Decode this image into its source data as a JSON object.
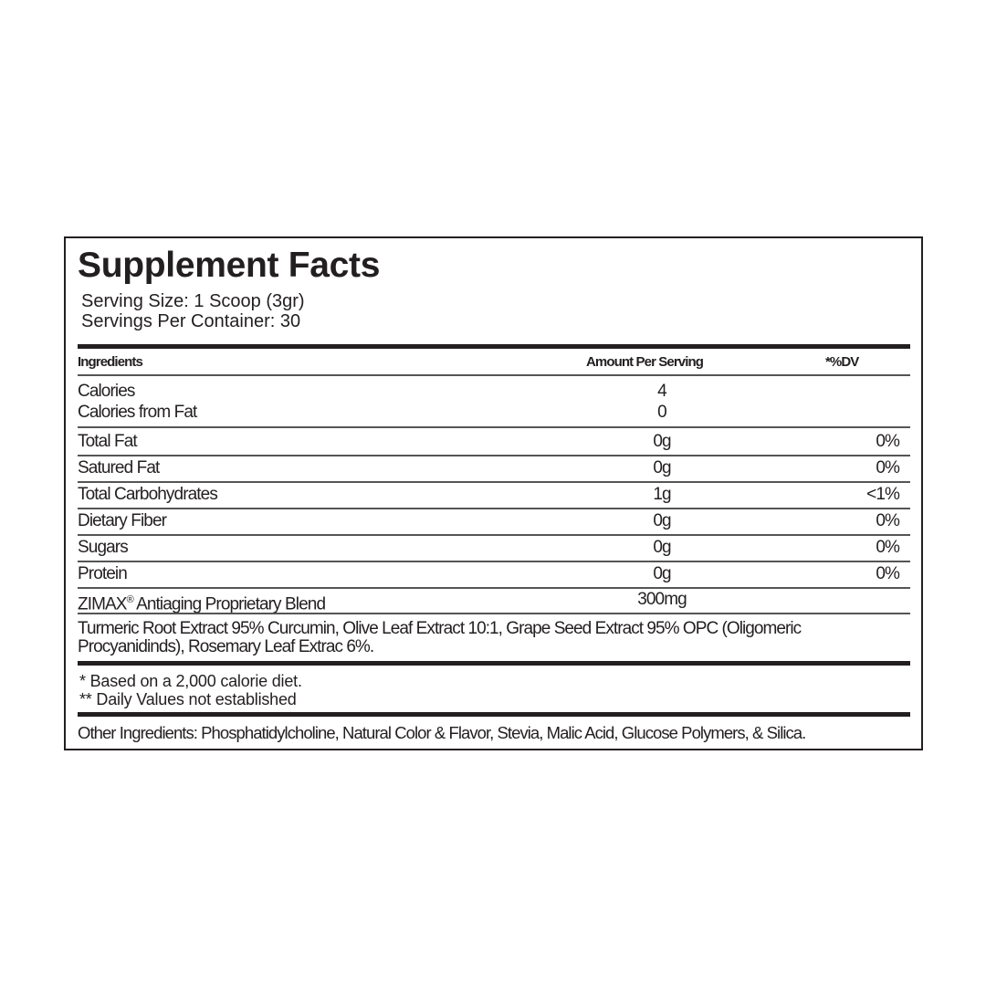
{
  "title": "Supplement Facts",
  "serving_size": "Serving Size: 1 Scoop (3gr)",
  "servings_per_container": "Servings Per Container: 30",
  "header": {
    "ingredients": "Ingredients",
    "amount": "Amount Per Serving",
    "dv": "*%DV"
  },
  "calories": {
    "label": "Calories",
    "amount": "4",
    "from_fat_label": "Calories from Fat",
    "from_fat_amount": "0"
  },
  "rows": [
    {
      "name": "Total Fat",
      "amount": "0g",
      "dv": "0%"
    },
    {
      "name": "Satured Fat",
      "amount": "0g",
      "dv": "0%"
    },
    {
      "name": "Total Carbohydrates",
      "amount": "1g",
      "dv": "<1%"
    },
    {
      "name": "Dietary Fiber",
      "amount": "0g",
      "dv": "0%"
    },
    {
      "name": "Sugars",
      "amount": "0g",
      "dv": "0%"
    },
    {
      "name": "Protein",
      "amount": "0g",
      "dv": "0%"
    }
  ],
  "blend": {
    "brand": "ZIMAX",
    "mark": "®",
    "name": " Antiaging Proprietary Blend",
    "amount": "300mg"
  },
  "blend_ingredients": [
    "Turmeric Root Extract 95% Curcumin, Olive Leaf Extract 10:1, Grape Seed Extract 95% OPC (Oligomeric",
    "Procyanidinds), Rosemary Leaf Extrac 6%."
  ],
  "footnotes": [
    "* Based on a 2,000 calorie diet.",
    "** Daily Values not established"
  ],
  "other_ingredients": "Other Ingredients: Phosphatidylcholine, Natural Color & Flavor, Stevia, Malic Acid, Glucose Polymers, & Silica."
}
